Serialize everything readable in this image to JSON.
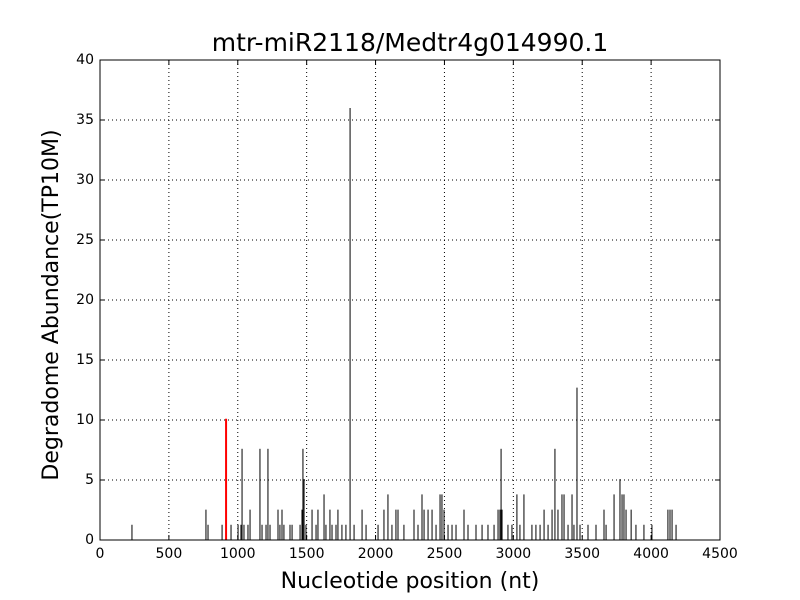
{
  "chart_data": {
    "type": "stem",
    "title": "mtr-miR2118/Medtr4g014990.1",
    "x_label": "Nucleotide position (nt)",
    "y_label": "Degradome Abundance(TP10M)",
    "xlim": [
      0,
      4500
    ],
    "xticks": [
      0,
      500,
      1000,
      1500,
      2000,
      2500,
      3000,
      3500,
      4000,
      4500
    ],
    "ylim": [
      0,
      40
    ],
    "yticks": [
      0,
      5,
      10,
      15,
      20,
      25,
      30,
      35,
      40
    ],
    "grid": true,
    "series": [
      {
        "color": "#000000",
        "x": [
          232,
          769,
          784,
          886,
          951,
          1002,
          1023,
          1031,
          1045,
          1074,
          1089,
          1161,
          1176,
          1205,
          1219,
          1234,
          1292,
          1306,
          1321,
          1335,
          1379,
          1394,
          1452,
          1466,
          1473,
          1481,
          1495,
          1539,
          1568,
          1582,
          1626,
          1640,
          1669,
          1684,
          1713,
          1727,
          1756,
          1785,
          1815,
          1844,
          1902,
          1931,
          2018,
          2061,
          2090,
          2119,
          2148,
          2163,
          2206,
          2279,
          2308,
          2337,
          2352,
          2381,
          2410,
          2439,
          2468,
          2482,
          2497,
          2526,
          2555,
          2584,
          2642,
          2671,
          2729,
          2773,
          2816,
          2860,
          2889,
          2903,
          2911,
          2918,
          2961,
          2990,
          3026,
          3048,
          3077,
          3135,
          3164,
          3194,
          3223,
          3252,
          3281,
          3302,
          3324,
          3353,
          3368,
          3397,
          3426,
          3440,
          3462,
          3484,
          3542,
          3600,
          3658,
          3673,
          3731,
          3774,
          3789,
          3803,
          3818,
          3855,
          3890,
          3948,
          4006,
          4122,
          4137,
          4152,
          4181
        ],
        "values": [
          1.27,
          2.53,
          1.27,
          1.27,
          1.27,
          1.27,
          1.27,
          7.6,
          1.27,
          1.27,
          2.53,
          7.6,
          1.27,
          1.27,
          7.6,
          1.27,
          2.53,
          1.27,
          2.53,
          1.27,
          1.27,
          1.27,
          1.27,
          2.53,
          7.6,
          5.07,
          1.27,
          2.53,
          1.27,
          2.53,
          3.8,
          1.27,
          2.53,
          1.27,
          1.27,
          2.53,
          1.27,
          1.27,
          36,
          1.27,
          2.53,
          1.27,
          1.27,
          2.53,
          3.8,
          1.27,
          2.53,
          2.53,
          1.27,
          2.53,
          1.27,
          3.8,
          2.53,
          2.53,
          2.53,
          1.27,
          3.8,
          3.8,
          2.53,
          1.27,
          1.27,
          1.27,
          2.53,
          1.27,
          1.27,
          1.27,
          1.27,
          1.27,
          2.53,
          2.53,
          7.6,
          2.53,
          1.27,
          1.27,
          3.8,
          1.27,
          3.8,
          1.27,
          1.27,
          1.27,
          2.53,
          1.27,
          2.53,
          7.6,
          2.53,
          3.8,
          3.8,
          1.27,
          3.8,
          1.27,
          12.7,
          1.27,
          1.27,
          1.27,
          2.53,
          1.27,
          3.8,
          5.07,
          3.8,
          3.8,
          2.53,
          2.53,
          1.27,
          1.27,
          1.27,
          2.53,
          2.53,
          2.53,
          1.27
        ]
      },
      {
        "color": "#ff0000",
        "x": [
          915
        ],
        "values": [
          10.1
        ]
      }
    ]
  }
}
